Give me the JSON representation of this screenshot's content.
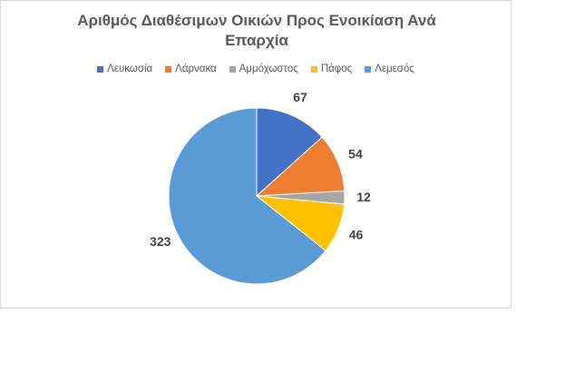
{
  "chart_data": {
    "type": "pie",
    "title": "Αριθμός Διαθέσιμων Οικιών Προς Ενοικίαση Ανά Επαρχία",
    "categories": [
      "Λευκωσία",
      "Λάρνακα",
      "Αμμόχωστος",
      "Πάφος",
      "Λεμεσός"
    ],
    "values": [
      67,
      54,
      12,
      46,
      323
    ],
    "colors": [
      "#4472c4",
      "#ed7d31",
      "#a5a5a5",
      "#ffc000",
      "#5b9bd5"
    ],
    "legend": "top"
  }
}
